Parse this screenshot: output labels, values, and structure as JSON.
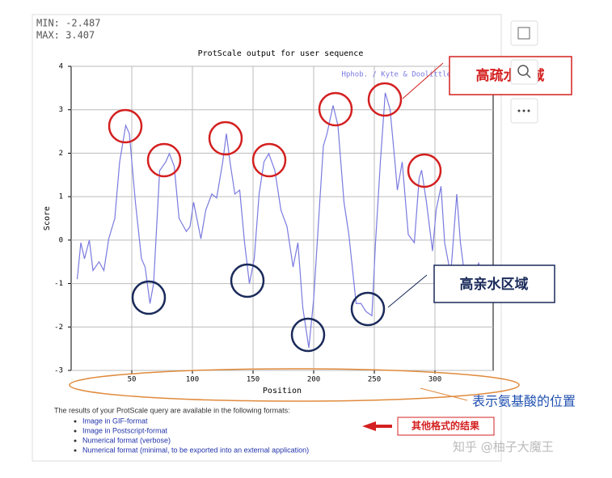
{
  "chart_data": {
    "type": "line",
    "title": "ProtScale output for user sequence",
    "xlabel": "Position",
    "ylabel": "Score",
    "stats": [
      "MIN: -2.487",
      "MAX: 3.407"
    ],
    "xlim": [
      0,
      348
    ],
    "xticks": [
      50,
      100,
      150,
      200,
      250,
      300
    ],
    "ylim": [
      -3,
      4
    ],
    "yticks": [
      -3,
      -2,
      -1,
      0,
      1,
      2,
      3,
      4
    ],
    "grid": true,
    "legend": "top-right",
    "x": [
      5,
      8,
      11,
      15,
      18,
      23,
      27,
      31,
      36,
      40,
      45,
      48,
      53,
      58,
      61,
      65,
      68,
      73,
      78,
      81,
      85,
      89,
      95,
      98,
      101,
      107,
      111,
      116,
      120,
      125,
      128,
      131,
      135,
      139,
      143,
      147,
      151,
      155,
      159,
      163,
      168,
      173,
      178,
      183,
      187,
      191,
      196,
      200,
      205,
      208,
      211,
      216,
      220,
      225,
      229,
      235,
      239,
      243,
      248,
      251,
      255,
      259,
      263,
      267,
      269,
      273,
      278,
      283,
      287,
      289,
      293,
      298,
      301,
      305,
      308,
      313,
      318,
      321,
      327,
      331,
      336,
      340
    ],
    "series": [
      {
        "name": "Hphob. / Kyte & Doolittle",
        "color": "#7a7ae0",
        "values": [
          -0.9,
          -0.06,
          -0.43,
          0,
          -0.7,
          -0.5,
          -0.7,
          0.03,
          0.5,
          1.8,
          2.64,
          2.45,
          0.87,
          -0.43,
          -0.62,
          -1.46,
          -1,
          1.6,
          1.8,
          1.99,
          1.7,
          0.5,
          0.2,
          0.31,
          0.87,
          0.03,
          0.69,
          1.06,
          0.97,
          1.8,
          2.45,
          1.8,
          1.06,
          1.15,
          -0.06,
          -1,
          -0.43,
          1.06,
          1.8,
          1.99,
          1.6,
          0.69,
          0.31,
          -0.62,
          -0.06,
          -1.55,
          -2.48,
          -1.36,
          0.87,
          2.17,
          2.45,
          3.1,
          2.64,
          0.87,
          0.13,
          -1.46,
          -1.46,
          -1.64,
          -1.74,
          -0.06,
          1.8,
          3.39,
          3.01,
          1.8,
          1.15,
          1.8,
          0.13,
          -0.06,
          1.43,
          1.61,
          0.87,
          -0.25,
          0.69,
          1.24,
          -0.06,
          -0.8,
          1.06,
          -0.06,
          -1.36,
          -0.9,
          -0.53,
          -0.9
        ]
      }
    ],
    "annotations": [
      "高疏水区域",
      "高亲水区域",
      "表示氨基酸的位置",
      "其他格式的结果"
    ]
  },
  "footer": {
    "intro": "The results of your ProtScale query are available in the following formats:",
    "links": [
      "Image in GIF-format",
      "Image in Postscript-format",
      "Numerical format (verbose)",
      "Numerical format (minimal, to be exported into an external application)"
    ]
  },
  "watermark": "知乎 @柚子大魔王"
}
